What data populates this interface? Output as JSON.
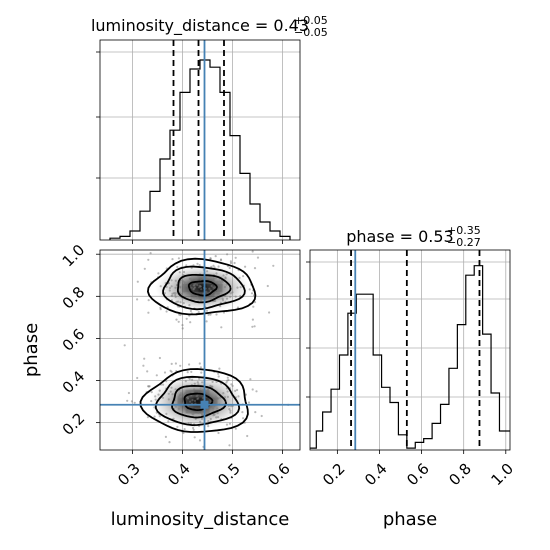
{
  "chart_data": {
    "type": "corner",
    "parameters": [
      "luminosity_distance",
      "phase"
    ],
    "truth": {
      "luminosity_distance": 0.444,
      "phase": 0.285,
      "color": "#4682b4"
    },
    "panels": [
      {
        "id": "luminosity_distance_1d",
        "type": "histogram",
        "title": {
          "prefix": "luminosity_distance = ",
          "median": "0.43",
          "plus": "+0.05",
          "minus": "−0.05"
        },
        "xlim": [
          0.235,
          0.635
        ],
        "bin_width": 0.02,
        "bin_edges_start": 0.255,
        "counts": [
          0.01,
          0.02,
          0.05,
          0.16,
          0.27,
          0.45,
          0.61,
          0.82,
          0.95,
          1.0,
          0.96,
          0.82,
          0.58,
          0.37,
          0.2,
          0.1,
          0.05,
          0.02
        ],
        "quantiles": [
          0.382,
          0.432,
          0.483
        ],
        "yticks": [
          "",
          "",
          ""
        ]
      },
      {
        "id": "phase_1d",
        "type": "histogram",
        "title": {
          "prefix": "phase = ",
          "median": "0.53",
          "plus": "+0.35",
          "minus": "−0.27"
        },
        "xlim": [
          0.07,
          1.02
        ],
        "bin_edges": [
          0.07,
          0.1,
          0.13,
          0.17,
          0.21,
          0.25,
          0.29,
          0.33,
          0.37,
          0.41,
          0.45,
          0.49,
          0.53,
          0.57,
          0.61,
          0.65,
          0.69,
          0.73,
          0.77,
          0.81,
          0.85,
          0.89,
          0.93,
          0.97,
          1.02
        ],
        "counts": [
          0.01,
          0.1,
          0.2,
          0.32,
          0.5,
          0.72,
          0.82,
          0.82,
          0.5,
          0.33,
          0.25,
          0.08,
          0.01,
          0.04,
          0.06,
          0.14,
          0.24,
          0.43,
          0.66,
          0.92,
          0.97,
          0.61,
          0.3,
          0.1
        ],
        "quantiles": [
          0.265,
          0.53,
          0.875
        ],
        "xticks": [
          "0.2",
          "0.4",
          "0.6",
          "0.8",
          "1.0"
        ],
        "xticks_values": [
          0.2,
          0.4,
          0.6,
          0.8,
          1.0
        ],
        "xlabel": "phase"
      },
      {
        "id": "joint_2d",
        "type": "2d-density",
        "xlim": [
          0.235,
          0.635
        ],
        "ylim": [
          0.07,
          1.02
        ],
        "xticks": [
          "0.3",
          "0.4",
          "0.5",
          "0.6"
        ],
        "xticks_values": [
          0.3,
          0.4,
          0.5,
          0.6
        ],
        "yticks": [
          "0.2",
          "0.4",
          "0.6",
          "0.8",
          "1.0"
        ],
        "yticks_values": [
          0.2,
          0.4,
          0.6,
          0.8,
          1.0
        ],
        "xlabel": "luminosity_distance",
        "ylabel": "phase",
        "modes": [
          {
            "x": 0.44,
            "y": 0.84,
            "sx": 0.05,
            "sy": 0.065
          },
          {
            "x": 0.43,
            "y": 0.3,
            "sx": 0.05,
            "sy": 0.075
          }
        ]
      }
    ],
    "grid": true
  }
}
